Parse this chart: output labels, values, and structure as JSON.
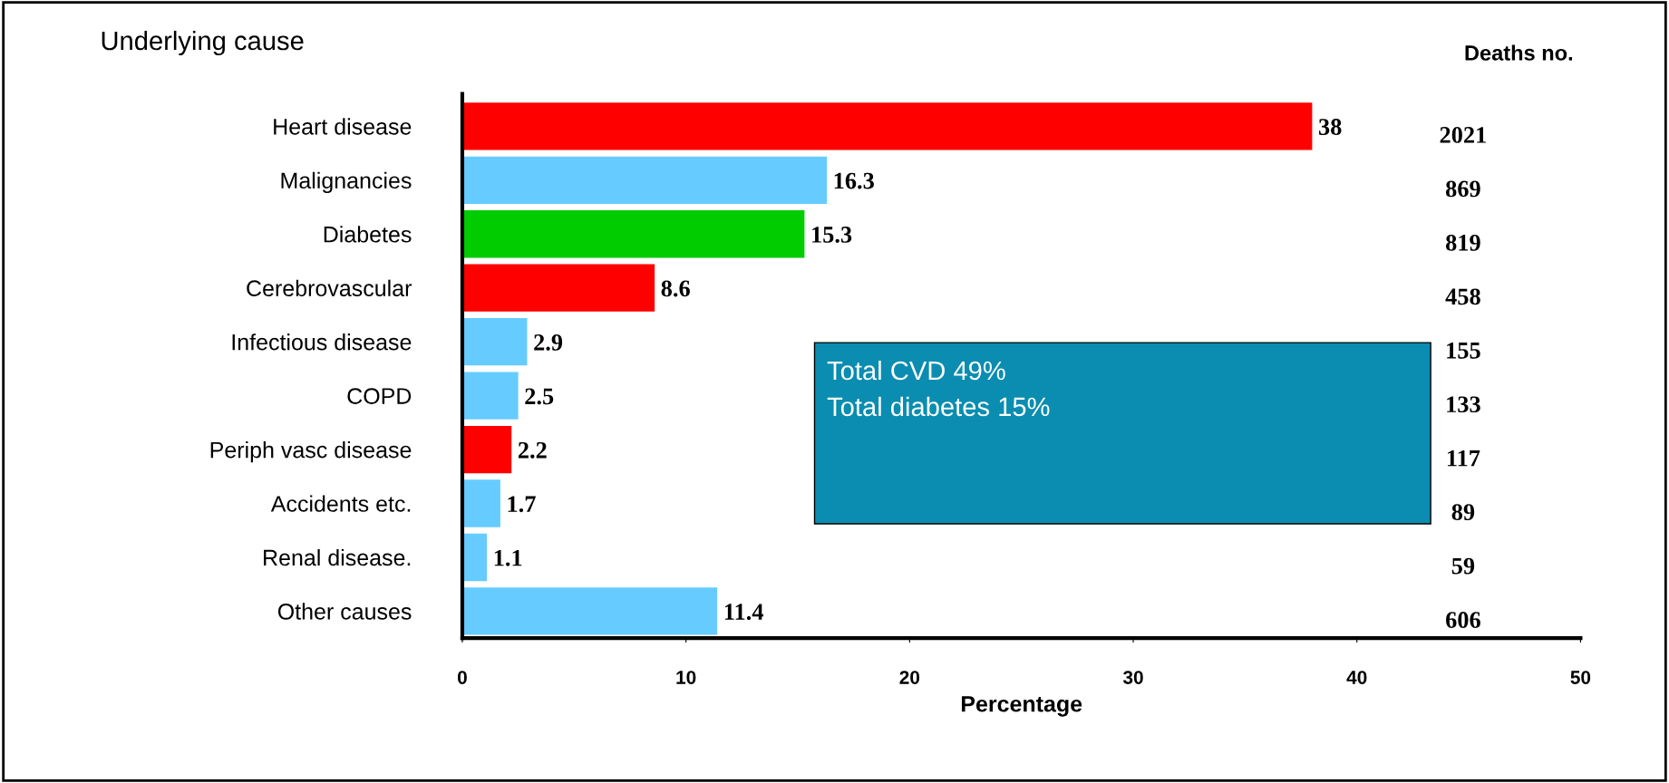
{
  "chart_data": {
    "type": "bar",
    "orientation": "horizontal",
    "xlabel": "Percentage",
    "categories": [
      "Heart disease",
      "Malignancies",
      "Diabetes",
      "Cerebrovascular",
      "Infectious disease",
      "COPD",
      "Periph vasc disease",
      "Accidents etc.",
      "Renal disease.",
      "Other causes"
    ],
    "values": [
      38,
      16.3,
      15.3,
      8.6,
      2.9,
      2.5,
      2.2,
      1.7,
      1.1,
      11.4
    ],
    "colors": [
      "#ff0000",
      "#66ccff",
      "#00cc00",
      "#ff0000",
      "#66ccff",
      "#66ccff",
      "#ff0000",
      "#66ccff",
      "#66ccff",
      "#66ccff"
    ],
    "data_labels": true,
    "xlim": [
      0,
      50
    ],
    "xticks": [
      0,
      10,
      20,
      30,
      40,
      50
    ],
    "grid": false,
    "annotations": [
      "Underlying cause",
      "Deaths no.",
      "Total CVD 49%\nTotal diabetes 15%",
      "2021",
      "869",
      "819",
      "458",
      "155",
      "133",
      "117",
      "89",
      "59",
      "606"
    ]
  }
}
